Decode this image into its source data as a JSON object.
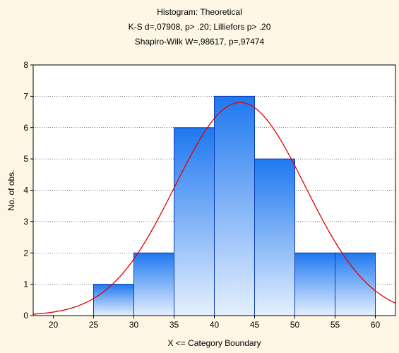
{
  "chart_data": {
    "type": "bar",
    "title_lines": [
      "Histogram: Theoretical",
      "K-S d=,07908, p> .20; Lilliefors p> .20",
      "Shapiro-Wilk W=,98617, p=,97474"
    ],
    "xlabel": "X <= Category Boundary",
    "ylabel": "No. of obs.",
    "x_ticks": [
      20,
      25,
      30,
      35,
      40,
      45,
      50,
      55,
      60
    ],
    "y_ticks": [
      0,
      1,
      2,
      3,
      4,
      5,
      6,
      7,
      8
    ],
    "xlim": [
      17.5,
      62.5
    ],
    "ylim": [
      0,
      8
    ],
    "bins": [
      {
        "lower": 25,
        "upper": 30,
        "count": 1
      },
      {
        "lower": 30,
        "upper": 35,
        "count": 2
      },
      {
        "lower": 35,
        "upper": 40,
        "count": 6
      },
      {
        "lower": 40,
        "upper": 45,
        "count": 7
      },
      {
        "lower": 45,
        "upper": 50,
        "count": 5
      },
      {
        "lower": 50,
        "upper": 55,
        "count": 2
      },
      {
        "lower": 55,
        "upper": 60,
        "count": 2
      }
    ],
    "fitted_curve": {
      "type": "normal",
      "mean": 43.2,
      "sd": 8.1,
      "peak": 6.8,
      "color": "#E00000"
    },
    "grid": true,
    "colors": {
      "bar_top": "#1E78F0",
      "bar_bottom": "#E6F0FE",
      "bar_edge": "#0A3DB0",
      "plot_bg": "#FFFFFF",
      "page_bg": "#FDF6E5"
    }
  }
}
